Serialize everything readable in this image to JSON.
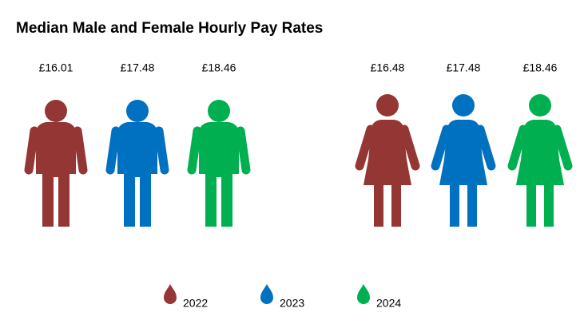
{
  "chart_data": {
    "type": "pictograph",
    "title": "Median Male and Female Hourly Pay Rates",
    "categories": [
      null,
      null
    ],
    "series": [
      {
        "name": "2022",
        "color": "#943634",
        "values": [
          16.01,
          16.48
        ],
        "value_labels": [
          "£16.01",
          "£16.48"
        ]
      },
      {
        "name": "2023",
        "color": "#0070c0",
        "values": [
          17.48,
          17.48
        ],
        "value_labels": [
          "£17.48",
          "£17.48"
        ]
      },
      {
        "name": "2024",
        "color": "#00b050",
        "values": [
          18.46,
          18.46
        ],
        "value_labels": [
          "£18.46",
          "£18.46"
        ]
      }
    ]
  }
}
